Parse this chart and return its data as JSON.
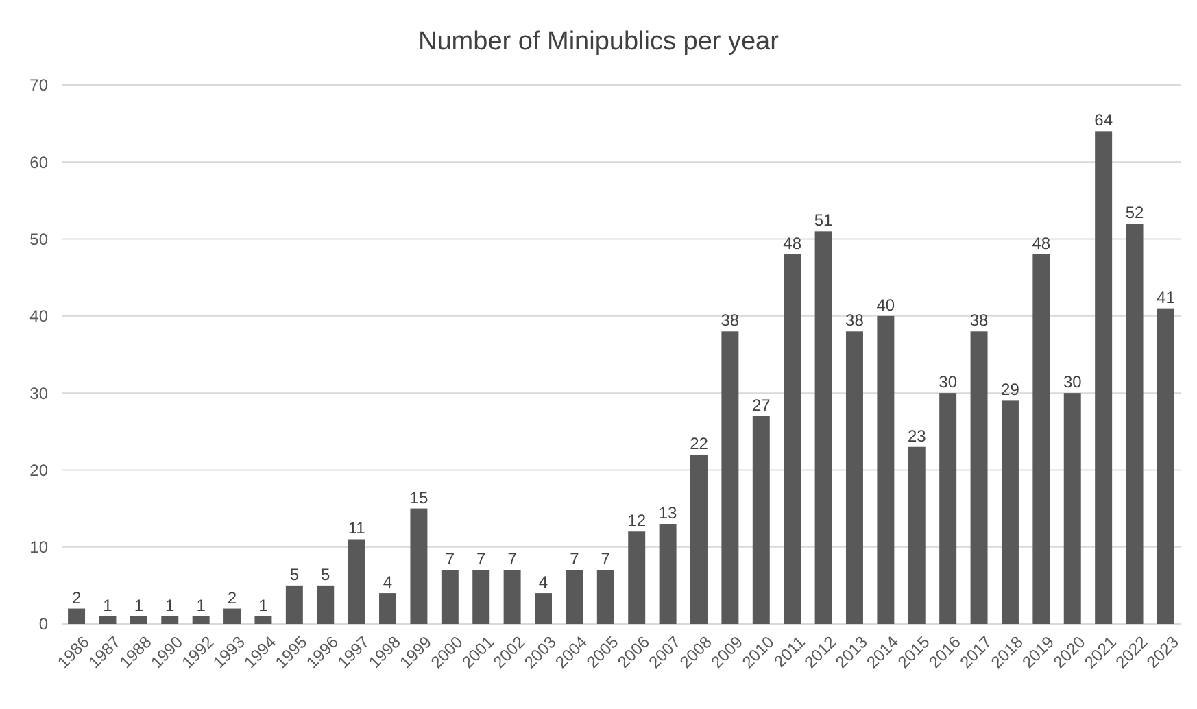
{
  "chart_data": {
    "type": "bar",
    "title": "Number of Minipublics per year",
    "categories": [
      "1986",
      "1987",
      "1988",
      "1990",
      "1992",
      "1993",
      "1994",
      "1995",
      "1996",
      "1997",
      "1998",
      "1999",
      "2000",
      "2001",
      "2002",
      "2003",
      "2004",
      "2005",
      "2006",
      "2007",
      "2008",
      "2009",
      "2010",
      "2011",
      "2012",
      "2013",
      "2014",
      "2015",
      "2016",
      "2017",
      "2018",
      "2019",
      "2020",
      "2021",
      "2022",
      "2023"
    ],
    "values": [
      2,
      1,
      1,
      1,
      1,
      2,
      1,
      5,
      5,
      11,
      4,
      15,
      7,
      7,
      7,
      4,
      7,
      7,
      12,
      13,
      22,
      38,
      27,
      48,
      51,
      38,
      40,
      23,
      30,
      38,
      29,
      48,
      30,
      64,
      52,
      41
    ],
    "color": "#595959",
    "ylim": [
      0,
      70
    ],
    "yticks": [
      0,
      10,
      20,
      30,
      40,
      50,
      60,
      70
    ],
    "grid": "y",
    "data_labels": true
  }
}
